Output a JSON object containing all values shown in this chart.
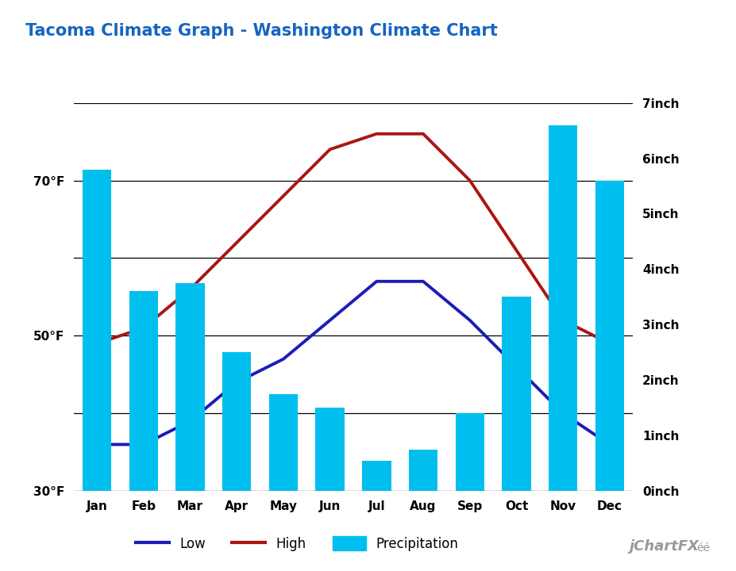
{
  "title": "Tacoma Climate Graph - Washington Climate Chart",
  "months": [
    "Jan",
    "Feb",
    "Mar",
    "Apr",
    "May",
    "Jun",
    "Jul",
    "Aug",
    "Sep",
    "Oct",
    "Nov",
    "Dec"
  ],
  "low_temp": [
    36,
    36,
    39,
    44,
    47,
    52,
    57,
    57,
    52,
    46,
    40,
    36
  ],
  "high_temp": [
    49,
    51,
    56,
    62,
    68,
    74,
    76,
    76,
    70,
    61,
    52,
    49
  ],
  "precipitation": [
    5.8,
    3.6,
    3.75,
    2.5,
    1.75,
    1.5,
    0.55,
    0.75,
    1.4,
    3.5,
    6.6,
    5.6
  ],
  "bar_color": "#00BFEF",
  "low_line_color": "#1C1CB8",
  "high_line_color": "#AA1515",
  "temp_min": 30,
  "temp_max": 80,
  "temp_ticks": [
    30,
    40,
    50,
    60,
    70,
    80
  ],
  "temp_tick_labels": [
    "30°F",
    "",
    "50°F",
    "",
    "70°F",
    ""
  ],
  "precip_min": 0,
  "precip_max": 7,
  "precip_ticks": [
    0,
    1,
    2,
    3,
    4,
    5,
    6,
    7
  ],
  "precip_tick_labels": [
    "0inch",
    "1inch",
    "2inch",
    "3inch",
    "4inch",
    "5inch",
    "6inch",
    "7inch"
  ],
  "title_color": "#1565C0",
  "title_fontsize": 15,
  "tick_fontsize": 11,
  "legend_fontsize": 12,
  "background_color": "#ffffff",
  "line_width": 2.8,
  "bar_width": 0.62
}
